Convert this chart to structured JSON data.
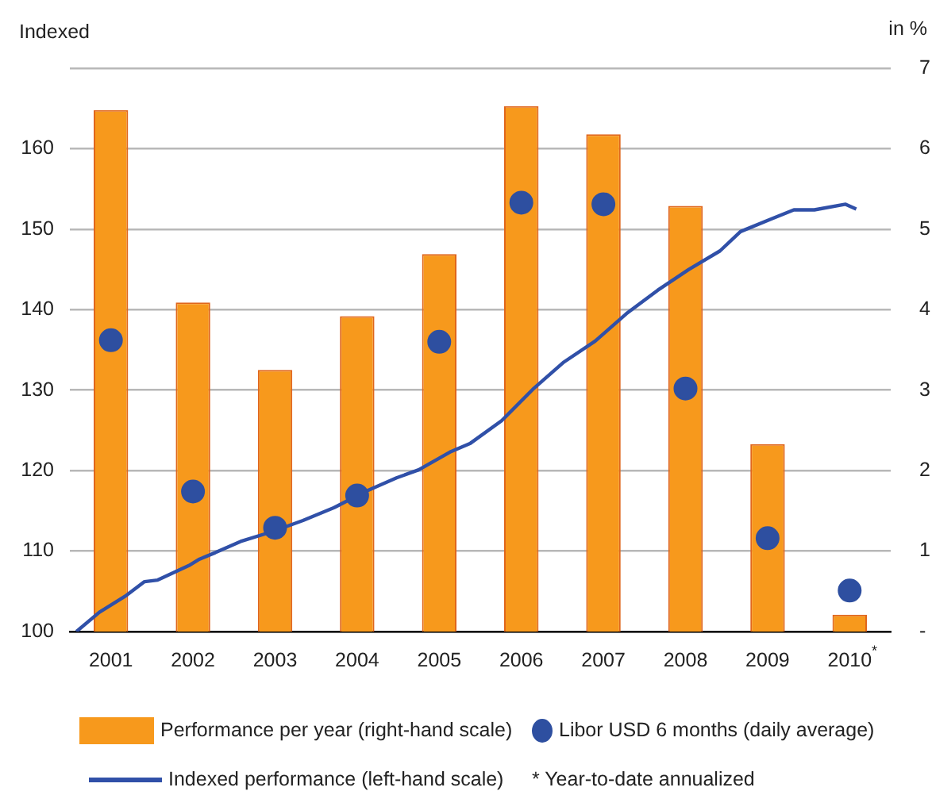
{
  "chart_data": {
    "type": "bar",
    "xlabel": null,
    "ylabel": "Indexed",
    "y2label": "in %",
    "x": [
      2001.5,
      2002.5,
      2003.5,
      2004.5,
      2005.5,
      2006.5,
      2007.5,
      2008.5,
      2009.5,
      2010.5
    ],
    "xticks": [
      {
        "value": 2001.5,
        "label": "2001"
      },
      {
        "value": 2002.5,
        "label": "2002"
      },
      {
        "value": 2003.5,
        "label": "2003"
      },
      {
        "value": 2004.5,
        "label": "2004"
      },
      {
        "value": 2005.5,
        "label": "2005"
      },
      {
        "value": 2006.5,
        "label": "2006"
      },
      {
        "value": 2007.5,
        "label": "2007"
      },
      {
        "value": 2008.5,
        "label": "2008"
      },
      {
        "value": 2009.5,
        "label": "2009"
      },
      {
        "value": 2010.5,
        "label": "2010$^{*}$"
      }
    ],
    "series": [
      {
        "name": "Performance per year (right-hand scale)",
        "axis": "y2",
        "color": "#f7991c",
        "values": [
          6.48,
          4.09,
          3.25,
          3.92,
          4.69,
          6.53,
          6.18,
          5.29,
          2.33,
          0.21
        ]
      },
      {
        "name": "Indexed performance (left-hand scale)",
        "type": "line",
        "axis": "y",
        "color": "#3050a8",
        "x": [
          2001.08,
          2001.36,
          2001.69,
          2001.91,
          2002.07,
          2002.45,
          2002.58,
          2002.77,
          2003.08,
          2003.46,
          2003.84,
          2004.22,
          2004.6,
          2004.98,
          2005.25,
          2005.63,
          2005.88,
          2006.26,
          2006.64,
          2007.02,
          2007.4,
          2007.78,
          2008.16,
          2008.54,
          2008.92,
          2009.17,
          2009.55,
          2009.82,
          2010.07,
          2010.45,
          2010.58
        ],
        "values": [
          100,
          102.4,
          104.5,
          106.2,
          106.4,
          108.2,
          109,
          109.8,
          111.2,
          112.4,
          113.8,
          115.4,
          117.4,
          119.1,
          120.1,
          122.3,
          123.4,
          126.2,
          130.1,
          133.5,
          136.1,
          139.5,
          142.4,
          145,
          147.3,
          149.7,
          151.3,
          152.4,
          152.4,
          153.1,
          152.5
        ]
      },
      {
        "name": "Libor USD 6 months (daily average)",
        "type": "scatter",
        "axis": "y2",
        "color": "#2e4fa0",
        "marker": "circle",
        "values": [
          3.62,
          1.74,
          1.29,
          1.69,
          3.6,
          5.33,
          5.31,
          3.02,
          1.16,
          0.51
        ]
      }
    ],
    "xlim": [
      2001,
      2011
    ],
    "ylim": [
      100,
      170
    ],
    "yticks": [
      100,
      110,
      120,
      130,
      140,
      150,
      160,
      {
        "value": 170,
        "label": null
      }
    ],
    "y2lim": [
      0,
      7
    ],
    "y2ticks": [
      {
        "value": 0,
        "label": "-"
      },
      1,
      2,
      3,
      4,
      5,
      6,
      7
    ],
    "grid": "y",
    "legend": "bottom",
    "line_style": "solid",
    "annotations": [
      "* Year-to-date annualized"
    ]
  }
}
